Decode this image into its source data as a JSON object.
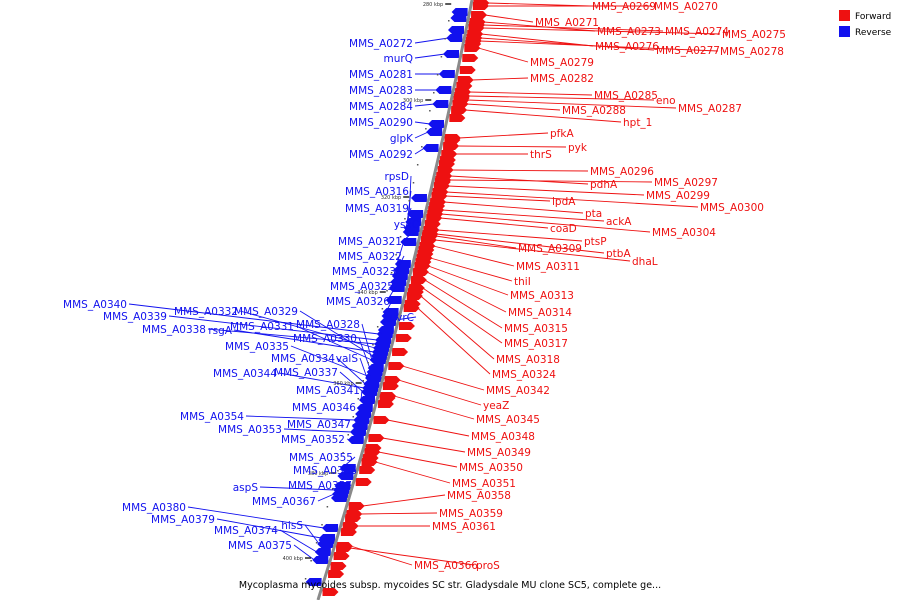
{
  "caption": "Mycoplasma mycoides subsp. mycoides SC str. Gladysdale MU clone SC5, complete ge...",
  "legend": [
    {
      "label": "Forward",
      "color": "#ee1111"
    },
    {
      "label": "Reverse",
      "color": "#1111ee"
    }
  ],
  "ticks": [
    "280 kbp",
    "300 kbp",
    "320 kbp",
    "340 kbp",
    "360 kbp",
    "380 kbp",
    "400 kbp"
  ],
  "forward_genes": [
    "MMS_A0269",
    "MMS_A0270",
    "MMS_A0271",
    "MMS_A0273",
    "MMS_A0274",
    "MMS_A0275",
    "MMS_A0276",
    "MMS_A0277",
    "MMS_A0278",
    "MMS_A0279",
    "MMS_A0282",
    "MMS_A0285",
    "eno",
    "MMS_A0287",
    "MMS_A0288",
    "hpt_1",
    "pfkA",
    "pyk",
    "thrS",
    "MMS_A0296",
    "pdhA",
    "MMS_A0297",
    "MMS_A0299",
    "lpdA",
    "MMS_A0300",
    "pta",
    "ackA",
    "coaD",
    "MMS_A0304",
    "ptsP",
    "MMS_A0309",
    "ptbA",
    "dhaL",
    "MMS_A0311",
    "thiI",
    "MMS_A0313",
    "MMS_A0314",
    "MMS_A0315",
    "MMS_A0317",
    "MMS_A0318",
    "MMS_A0324",
    "MMS_A0342",
    "yeaZ",
    "MMS_A0345",
    "MMS_A0348",
    "MMS_A0349",
    "MMS_A0350",
    "MMS_A0351",
    "MMS_A0358",
    "MMS_A0359",
    "MMS_A0361",
    "MMS_A0366",
    "proS"
  ],
  "reverse_genes": [
    "MMS_A0272",
    "murQ",
    "MMS_A0281",
    "MMS_A0283",
    "MMS_A0284",
    "MMS_A0290",
    "glpK",
    "MMS_A0292",
    "rpsD",
    "MMS_A0316",
    "MMS_A0319",
    "ysxC",
    "MMS_A0321",
    "MMS_A0322",
    "MMS_A0323",
    "MMS_A0325",
    "MMS_A0326",
    "MMS_A0340",
    "MMS_A0339",
    "MMS_A0332",
    "MMS_A0329",
    "uvrC",
    "MMS_A0338",
    "rsgA",
    "MMS_A0331",
    "MMS_A0328",
    "MMS_A0330",
    "MMS_A0335",
    "MMS_A0334",
    "valS",
    "MMS_A0344",
    "MMS_A0337",
    "MMS_A0341",
    "MMS_A0346",
    "MMS_A0354",
    "MMS_A0347",
    "MMS_A0353",
    "MMS_A0352",
    "MMS_A0355",
    "MMS_A0356",
    "aspS",
    "MMS_A0357",
    "MMS_A0367",
    "MMS_A0380",
    "MMS_A0379",
    "hisS",
    "MMS_A0374",
    "MMS_A0375"
  ]
}
